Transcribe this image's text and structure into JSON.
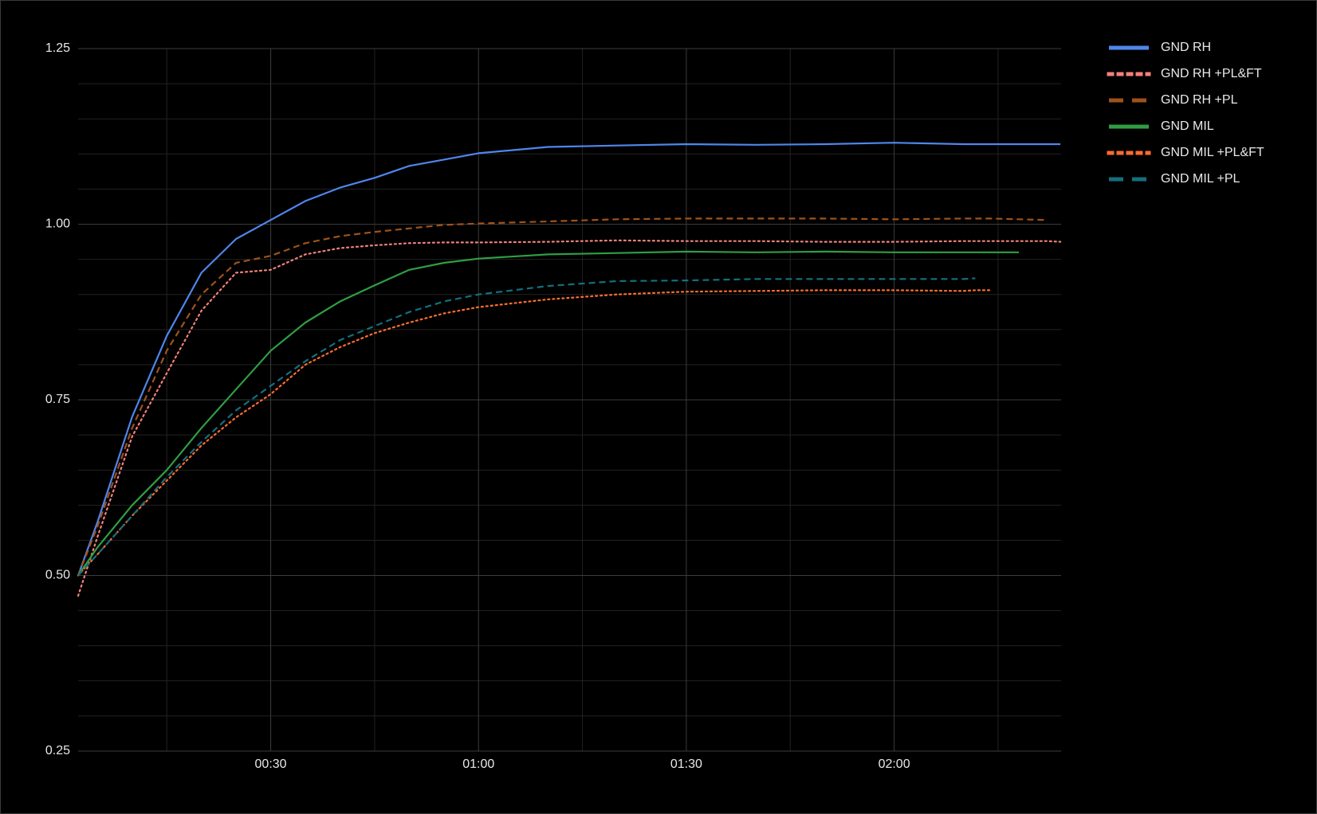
{
  "chart_data": {
    "type": "line",
    "x": [
      2.2,
      5,
      10,
      15,
      20,
      25,
      30,
      35,
      40,
      45,
      50,
      55,
      60,
      70,
      80,
      90,
      100,
      110,
      120,
      130,
      131.7,
      134,
      138,
      142,
      144
    ],
    "xlim": [
      2.2,
      144.1
    ],
    "xticks": [
      {
        "value": 30,
        "label": "00:30"
      },
      {
        "value": 60,
        "label": "01:00"
      },
      {
        "value": 90,
        "label": "01:30"
      },
      {
        "value": 120,
        "label": "02:00"
      }
    ],
    "x_minor_ticks": [
      15,
      45,
      75,
      105,
      135
    ],
    "ylim": [
      0.25,
      1.25
    ],
    "yticks": [
      0.25,
      {
        "value": 0.5,
        "label": "0.50"
      },
      0.75,
      {
        "value": 1.0,
        "label": "1.00"
      },
      1.25
    ],
    "y_minor_ticks": [
      0.3,
      0.35,
      0.4,
      0.45,
      0.55,
      0.6,
      0.65,
      0.7,
      0.8,
      0.85,
      0.9,
      0.95,
      1.05,
      1.1,
      1.15,
      1.2
    ],
    "grid": true,
    "legend": "right",
    "series": [
      {
        "name": "GND RH",
        "color": "#4f86ec",
        "style": "solid",
        "values": [
          0.5,
          0.576,
          0.726,
          0.841,
          0.931,
          0.979,
          1.006,
          1.033,
          1.052,
          1.066,
          1.083,
          1.092,
          1.101,
          1.11,
          1.112,
          1.114,
          1.113,
          1.114,
          1.116,
          1.114,
          1.114,
          1.114,
          1.114,
          1.114,
          1.114
        ]
      },
      {
        "name": "GND RH +PL&FT",
        "color": "#f4817a",
        "style": "dotted",
        "values": [
          0.471,
          0.555,
          0.698,
          0.788,
          0.877,
          0.931,
          0.935,
          0.957,
          0.966,
          0.97,
          0.973,
          0.974,
          0.974,
          0.975,
          0.977,
          0.976,
          0.976,
          0.975,
          0.975,
          0.976,
          0.976,
          0.976,
          0.976,
          0.976,
          0.975
        ]
      },
      {
        "name": "GND RH +PL",
        "color": "#a0521a",
        "style": "dashed",
        "values": [
          0.5,
          0.57,
          0.71,
          0.82,
          0.9,
          0.945,
          0.955,
          0.973,
          0.983,
          0.989,
          0.994,
          0.999,
          1.001,
          1.004,
          1.007,
          1.008,
          1.008,
          1.008,
          1.007,
          1.008,
          1.008,
          1.008,
          1.007,
          1.006,
          null
        ]
      },
      {
        "name": "GND MIL",
        "color": "#2f9e44",
        "style": "solid",
        "values": [
          0.5,
          0.54,
          0.6,
          0.65,
          0.71,
          0.765,
          0.82,
          0.86,
          0.89,
          0.913,
          0.935,
          0.945,
          0.951,
          0.957,
          0.959,
          0.961,
          0.96,
          0.961,
          0.96,
          0.96,
          0.96,
          0.96,
          0.96,
          null,
          null
        ]
      },
      {
        "name": "GND MIL +PL&FT",
        "color": "#ff6d2d",
        "style": "dotted",
        "values": [
          0.5,
          0.53,
          0.585,
          0.635,
          0.685,
          0.725,
          0.758,
          0.8,
          0.825,
          0.845,
          0.86,
          0.873,
          0.882,
          0.893,
          0.9,
          0.904,
          0.905,
          0.906,
          0.906,
          0.905,
          0.906,
          0.906,
          null,
          null,
          null
        ]
      },
      {
        "name": "GND MIL +PL",
        "color": "#13707e",
        "style": "dashed",
        "values": [
          0.5,
          0.53,
          0.585,
          0.64,
          0.69,
          0.735,
          0.77,
          0.805,
          0.835,
          0.855,
          0.875,
          0.89,
          0.9,
          0.912,
          0.919,
          0.92,
          0.922,
          0.922,
          0.922,
          0.922,
          0.923,
          null,
          null,
          null,
          null
        ]
      }
    ]
  }
}
